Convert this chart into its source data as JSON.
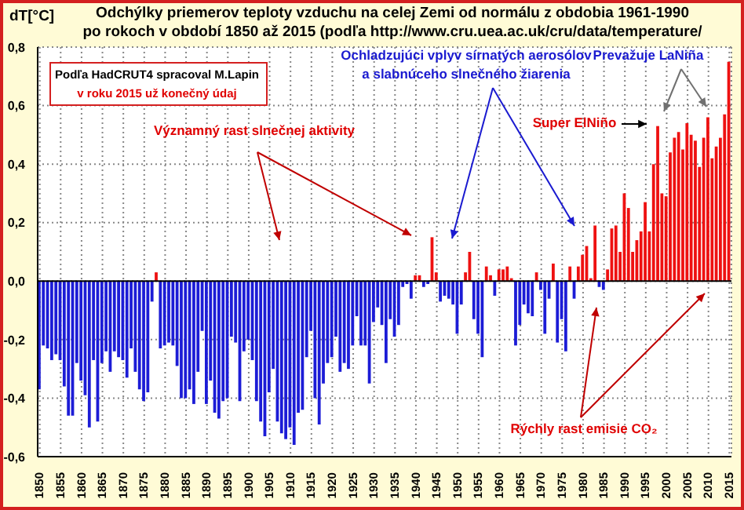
{
  "chart_data": {
    "type": "bar",
    "title": "Odchýlky priemerov teploty vzduchu na celej Zemi od normálu z obdobia 1961-1990\npo rokoch v období 1850 až 2015 (podľa http://www.cru.uea.ac.uk/cru/data/temperature/",
    "ylabel": "dT[°C]",
    "categories": [
      "1850",
      null,
      null,
      null,
      null,
      "1855",
      null,
      null,
      null,
      null,
      "1860",
      null,
      null,
      null,
      null,
      "1865",
      null,
      null,
      null,
      null,
      "1870",
      null,
      null,
      null,
      null,
      "1875",
      null,
      null,
      null,
      null,
      "1880",
      null,
      null,
      null,
      null,
      "1885",
      null,
      null,
      null,
      null,
      "1890",
      null,
      null,
      null,
      null,
      "1895",
      null,
      null,
      null,
      null,
      "1900",
      null,
      null,
      null,
      null,
      "1905",
      null,
      null,
      null,
      null,
      "1910",
      null,
      null,
      null,
      null,
      "1915",
      null,
      null,
      null,
      null,
      "1920",
      null,
      null,
      null,
      null,
      "1925",
      null,
      null,
      null,
      null,
      "1930",
      null,
      null,
      null,
      null,
      "1935",
      null,
      null,
      null,
      null,
      "1940",
      null,
      null,
      null,
      null,
      "1945",
      null,
      null,
      null,
      null,
      "1950",
      null,
      null,
      null,
      null,
      "1955",
      null,
      null,
      null,
      null,
      "1960",
      null,
      null,
      null,
      null,
      "1965",
      null,
      null,
      null,
      null,
      "1970",
      null,
      null,
      null,
      null,
      "1975",
      null,
      null,
      null,
      null,
      "1980",
      null,
      null,
      null,
      null,
      "1985",
      null,
      null,
      null,
      null,
      "1990",
      null,
      null,
      null,
      null,
      "1995",
      null,
      null,
      null,
      null,
      "2000",
      null,
      null,
      null,
      null,
      "2005",
      null,
      null,
      null,
      null,
      "2010",
      null,
      null,
      null,
      null,
      "2015"
    ],
    "values": [
      -0.37,
      -0.22,
      -0.23,
      -0.27,
      -0.25,
      -0.27,
      -0.36,
      -0.46,
      -0.46,
      -0.28,
      -0.34,
      -0.39,
      -0.5,
      -0.27,
      -0.48,
      -0.28,
      -0.24,
      -0.31,
      -0.24,
      -0.26,
      -0.27,
      -0.33,
      -0.23,
      -0.31,
      -0.37,
      -0.41,
      -0.38,
      -0.07,
      0.03,
      -0.23,
      -0.22,
      -0.21,
      -0.22,
      -0.29,
      -0.4,
      -0.4,
      -0.37,
      -0.42,
      -0.31,
      -0.17,
      -0.42,
      -0.34,
      -0.45,
      -0.47,
      -0.41,
      -0.4,
      -0.19,
      -0.21,
      -0.41,
      -0.24,
      -0.2,
      -0.27,
      -0.41,
      -0.48,
      -0.53,
      -0.38,
      -0.3,
      -0.48,
      -0.52,
      -0.54,
      -0.5,
      -0.56,
      -0.45,
      -0.44,
      -0.26,
      -0.17,
      -0.4,
      -0.49,
      -0.35,
      -0.28,
      -0.26,
      -0.19,
      -0.31,
      -0.28,
      -0.3,
      -0.22,
      -0.12,
      -0.22,
      -0.22,
      -0.35,
      -0.14,
      -0.09,
      -0.15,
      -0.28,
      -0.13,
      -0.19,
      -0.15,
      -0.02,
      -0.01,
      -0.06,
      0.02,
      0.02,
      -0.02,
      -0.01,
      0.15,
      0.03,
      -0.07,
      -0.05,
      -0.06,
      -0.08,
      -0.18,
      -0.08,
      0.03,
      0.1,
      -0.13,
      -0.18,
      -0.26,
      0.05,
      0.02,
      -0.05,
      0.04,
      0.04,
      0.05,
      0.01,
      -0.22,
      -0.15,
      -0.08,
      -0.11,
      -0.12,
      0.03,
      -0.03,
      -0.18,
      -0.06,
      0.06,
      -0.21,
      -0.13,
      -0.24,
      0.05,
      -0.06,
      0.05,
      0.09,
      0.12,
      0.01,
      0.19,
      -0.02,
      -0.03,
      0.04,
      0.18,
      0.19,
      0.1,
      0.3,
      0.25,
      0.1,
      0.14,
      0.17,
      0.27,
      0.17,
      0.4,
      0.53,
      0.3,
      0.29,
      0.44,
      0.49,
      0.51,
      0.45,
      0.54,
      0.5,
      0.48,
      0.39,
      0.49,
      0.56,
      0.42,
      0.46,
      0.49,
      0.57,
      0.75
    ],
    "colors": [
      "#1c1cd6",
      "#1c1cd6",
      "#1c1cd6",
      "#1c1cd6",
      "#1c1cd6",
      "#1c1cd6",
      "#1c1cd6",
      "#1c1cd6",
      "#1c1cd6",
      "#1c1cd6",
      "#1c1cd6",
      "#1c1cd6",
      "#1c1cd6",
      "#1c1cd6",
      "#1c1cd6",
      "#1c1cd6",
      "#1c1cd6",
      "#1c1cd6",
      "#1c1cd6",
      "#1c1cd6",
      "#1c1cd6",
      "#1c1cd6",
      "#1c1cd6",
      "#1c1cd6",
      "#1c1cd6",
      "#1c1cd6",
      "#1c1cd6",
      "#1c1cd6",
      "#ee1111",
      "#1c1cd6",
      "#1c1cd6",
      "#1c1cd6",
      "#1c1cd6",
      "#1c1cd6",
      "#1c1cd6",
      "#1c1cd6",
      "#1c1cd6",
      "#1c1cd6",
      "#1c1cd6",
      "#1c1cd6",
      "#1c1cd6",
      "#1c1cd6",
      "#1c1cd6",
      "#1c1cd6",
      "#1c1cd6",
      "#1c1cd6",
      "#1c1cd6",
      "#1c1cd6",
      "#1c1cd6",
      "#1c1cd6",
      "#1c1cd6",
      "#1c1cd6",
      "#1c1cd6",
      "#1c1cd6",
      "#1c1cd6",
      "#1c1cd6",
      "#1c1cd6",
      "#1c1cd6",
      "#1c1cd6",
      "#1c1cd6",
      "#1c1cd6",
      "#1c1cd6",
      "#1c1cd6",
      "#1c1cd6",
      "#1c1cd6",
      "#1c1cd6",
      "#1c1cd6",
      "#1c1cd6",
      "#1c1cd6",
      "#1c1cd6",
      "#1c1cd6",
      "#1c1cd6",
      "#1c1cd6",
      "#1c1cd6",
      "#1c1cd6",
      "#1c1cd6",
      "#1c1cd6",
      "#1c1cd6",
      "#1c1cd6",
      "#1c1cd6",
      "#1c1cd6",
      "#1c1cd6",
      "#1c1cd6",
      "#1c1cd6",
      "#1c1cd6",
      "#1c1cd6",
      "#1c1cd6",
      "#1c1cd6",
      "#1c1cd6",
      "#1c1cd6",
      "#ee1111",
      "#ee1111",
      "#1c1cd6",
      "#1c1cd6",
      "#ee1111",
      "#ee1111",
      "#1c1cd6",
      "#1c1cd6",
      "#1c1cd6",
      "#1c1cd6",
      "#1c1cd6",
      "#1c1cd6",
      "#ee1111",
      "#ee1111",
      "#1c1cd6",
      "#1c1cd6",
      "#1c1cd6",
      "#ee1111",
      "#ee1111",
      "#1c1cd6",
      "#ee1111",
      "#ee1111",
      "#ee1111",
      "#ee1111",
      "#1c1cd6",
      "#1c1cd6",
      "#1c1cd6",
      "#1c1cd6",
      "#1c1cd6",
      "#ee1111",
      "#1c1cd6",
      "#1c1cd6",
      "#1c1cd6",
      "#ee1111",
      "#1c1cd6",
      "#1c1cd6",
      "#1c1cd6",
      "#ee1111",
      "#1c1cd6",
      "#ee1111",
      "#ee1111",
      "#ee1111",
      "#ee1111",
      "#ee1111",
      "#1c1cd6",
      "#1c1cd6",
      "#ee1111",
      "#ee1111",
      "#ee1111",
      "#ee1111",
      "#ee1111",
      "#ee1111",
      "#ee1111",
      "#ee1111",
      "#ee1111",
      "#ee1111",
      "#ee1111",
      "#ee1111",
      "#ee1111",
      "#ee1111",
      "#ee1111",
      "#ee1111",
      "#ee1111",
      "#ee1111",
      "#ee1111",
      "#ee1111",
      "#ee1111",
      "#ee1111",
      "#ee1111",
      "#ee1111",
      "#ee1111",
      "#ee1111",
      "#ee1111",
      "#ee1111",
      "#ee1111",
      "#ee1111"
    ],
    "ylim": [
      -0.6,
      0.8
    ],
    "yticks": [
      {
        "value": -0.6,
        "label": "-0,6"
      },
      {
        "value": -0.4,
        "label": "-0,4"
      },
      {
        "value": -0.2,
        "label": "-0,2"
      },
      {
        "value": 0,
        "label": "0,0"
      },
      {
        "value": 0.2,
        "label": "0,2"
      },
      {
        "value": 0.4,
        "label": "0,4"
      },
      {
        "value": 0.6,
        "label": "0,6"
      },
      {
        "value": 0.8,
        "label": "0,8"
      }
    ],
    "grid": true,
    "annotations": [
      "Podľa HadCRUT4 spracoval M.Lapin",
      "v roku 2015 už konečný údaj",
      "Významný rast slnečnej aktivity",
      "Ochladzujúci vplyv sírnatých aerosólov\na slabnúceho slnečného žiarenia",
      "Prevažuje LaNiña",
      "Super ElNiño",
      "Rýchly rast emisie CO₂"
    ]
  }
}
